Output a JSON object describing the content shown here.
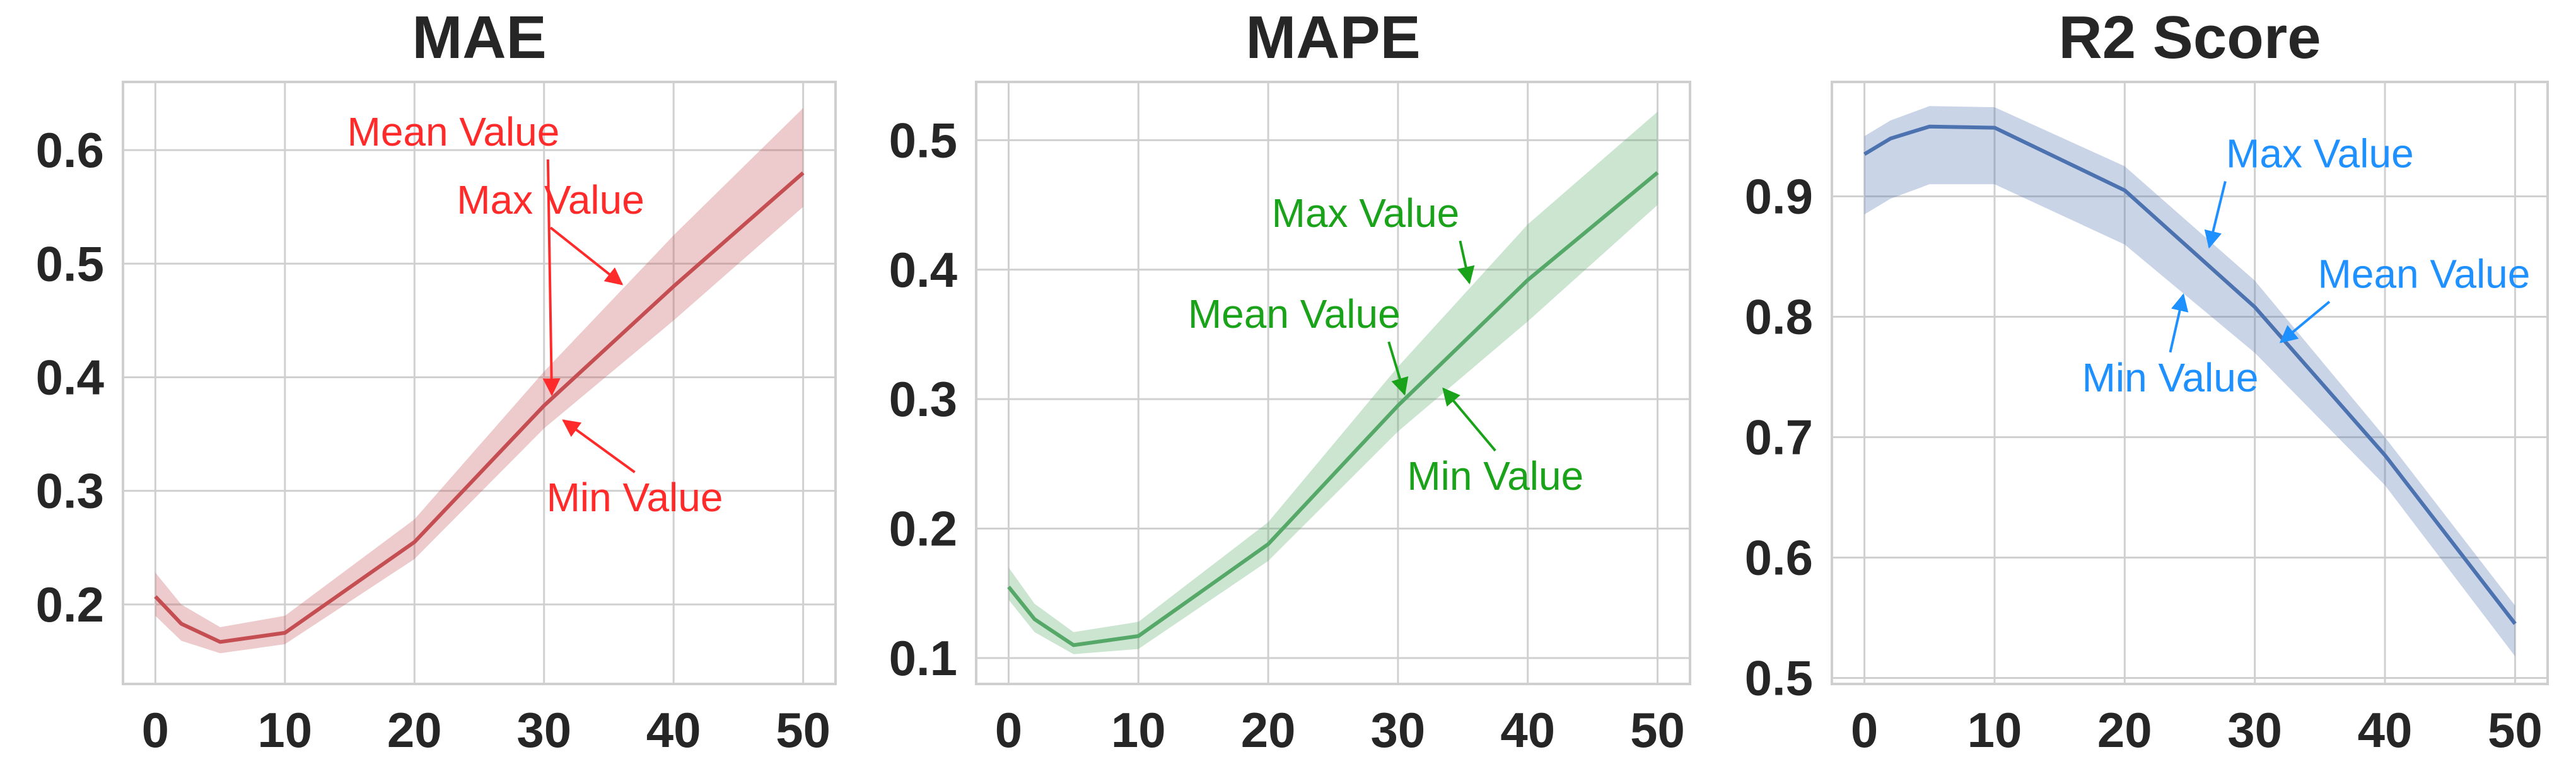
{
  "figure": {
    "background": "#ffffff",
    "grid_color": "#d0d0d0",
    "spine_color": "#cfcfcf"
  },
  "chart_data": [
    {
      "type": "line",
      "title": "MAE",
      "xlabel": "",
      "ylabel": "",
      "color": "#c44e52",
      "band_color": "#c44e52",
      "annotation_color": "#ff2a2a",
      "grid": true,
      "xlim": [
        -2.5,
        52.5
      ],
      "ylim": [
        0.13,
        0.66
      ],
      "xticks": [
        0,
        10,
        20,
        30,
        40,
        50
      ],
      "yticks": [
        0.2,
        0.3,
        0.4,
        0.5,
        0.6
      ],
      "ytick_labels": [
        "0.2",
        "0.3",
        "0.4",
        "0.5",
        "0.6"
      ],
      "x": [
        0,
        2,
        5,
        10,
        20,
        30,
        40,
        50
      ],
      "series": [
        {
          "label": "Mean Value",
          "values": [
            0.207,
            0.183,
            0.167,
            0.175,
            0.255,
            0.375,
            0.48,
            0.58
          ]
        },
        {
          "label": "Max Value",
          "values": [
            0.228,
            0.2,
            0.18,
            0.19,
            0.275,
            0.405,
            0.525,
            0.637
          ]
        },
        {
          "label": "Min Value",
          "values": [
            0.19,
            0.168,
            0.157,
            0.165,
            0.24,
            0.355,
            0.45,
            0.55
          ]
        }
      ],
      "annotations": [
        {
          "text": "Max Value",
          "text_x": 30.5,
          "text_y": 0.544,
          "target_x": 36,
          "target_y": 0.482
        },
        {
          "text": "Mean Value",
          "text_x": 23,
          "text_y": 0.604,
          "target_x": 30.6,
          "target_y": 0.385
        },
        {
          "text": "Min Value",
          "text_x": 37,
          "text_y": 0.282,
          "target_x": 31.5,
          "target_y": 0.362
        }
      ]
    },
    {
      "type": "line",
      "title": "MAPE",
      "xlabel": "",
      "ylabel": "",
      "color": "#55a868",
      "band_color": "#55a868",
      "annotation_color": "#1aa31a",
      "grid": true,
      "xlim": [
        -2.5,
        52.5
      ],
      "ylim": [
        0.08,
        0.545
      ],
      "xticks": [
        0,
        10,
        20,
        30,
        40,
        50
      ],
      "yticks": [
        0.1,
        0.2,
        0.3,
        0.4,
        0.5
      ],
      "ytick_labels": [
        "0.1",
        "0.2",
        "0.3",
        "0.4",
        "0.5"
      ],
      "x": [
        0,
        2,
        5,
        10,
        20,
        30,
        40,
        50
      ],
      "series": [
        {
          "label": "Mean Value",
          "values": [
            0.155,
            0.13,
            0.11,
            0.117,
            0.188,
            0.295,
            0.392,
            0.475
          ]
        },
        {
          "label": "Max Value",
          "values": [
            0.17,
            0.142,
            0.12,
            0.128,
            0.205,
            0.325,
            0.435,
            0.522
          ]
        },
        {
          "label": "Min Value",
          "values": [
            0.145,
            0.12,
            0.103,
            0.107,
            0.175,
            0.275,
            0.36,
            0.45
          ]
        }
      ],
      "annotations": [
        {
          "text": "Max Value",
          "text_x": 27.5,
          "text_y": 0.433,
          "target_x": 35.5,
          "target_y": 0.39
        },
        {
          "text": "Mean Value",
          "text_x": 22,
          "text_y": 0.355,
          "target_x": 30.5,
          "target_y": 0.304
        },
        {
          "text": "Min Value",
          "text_x": 37.5,
          "text_y": 0.23,
          "target_x": 33.5,
          "target_y": 0.308
        }
      ]
    },
    {
      "type": "line",
      "title": "R2 Score",
      "xlabel": "",
      "ylabel": "",
      "color": "#4c72b0",
      "band_color": "#4c72b0",
      "annotation_color": "#1e90ff",
      "grid": true,
      "xlim": [
        -2.5,
        52.5
      ],
      "ylim": [
        0.495,
        0.995
      ],
      "xticks": [
        0,
        10,
        20,
        30,
        40,
        50
      ],
      "yticks": [
        0.5,
        0.6,
        0.7,
        0.8,
        0.9
      ],
      "ytick_labels": [
        "0.5",
        "0.6",
        "0.7",
        "0.8",
        "0.9"
      ],
      "x": [
        0,
        2,
        5,
        10,
        20,
        30,
        40,
        50
      ],
      "series": [
        {
          "label": "Mean Value",
          "values": [
            0.935,
            0.948,
            0.958,
            0.957,
            0.905,
            0.808,
            0.685,
            0.545
          ]
        },
        {
          "label": "Max Value",
          "values": [
            0.95,
            0.963,
            0.975,
            0.974,
            0.925,
            0.83,
            0.7,
            0.56
          ]
        },
        {
          "label": "Min Value",
          "values": [
            0.885,
            0.898,
            0.91,
            0.91,
            0.86,
            0.77,
            0.66,
            0.518
          ]
        }
      ],
      "annotations": [
        {
          "text": "Max Value",
          "text_x": 35,
          "text_y": 0.924,
          "target_x": 26.5,
          "target_y": 0.858
        },
        {
          "text": "Mean Value",
          "text_x": 43,
          "text_y": 0.824,
          "target_x": 32,
          "target_y": 0.779
        },
        {
          "text": "Min Value",
          "text_x": 23.5,
          "text_y": 0.738,
          "target_x": 24.5,
          "target_y": 0.818
        }
      ]
    }
  ]
}
